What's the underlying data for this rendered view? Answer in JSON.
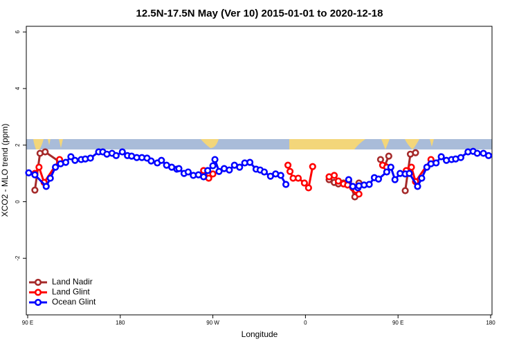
{
  "chart_data": {
    "type": "line",
    "title": "12.5N-17.5N May (Ver 10)   2015-01-01 to 2020-12-18",
    "x_label": "Longitude",
    "y_label": "XCO2 - MLO trend (ppm)",
    "xlim": [
      90,
      540
    ],
    "ylim": [
      -4,
      6.2
    ],
    "xticks": [
      {
        "value": 90,
        "label": "90 E"
      },
      180,
      {
        "value": 270,
        "label": "90 W"
      },
      {
        "value": 360,
        "label": "0"
      },
      {
        "value": 450,
        "label": "90 E"
      },
      {
        "value": 540,
        "label": "180"
      }
    ],
    "yticks": [
      -2,
      0,
      2,
      4,
      6
    ],
    "legend": "bottomleft",
    "series": [
      {
        "name": "Land Nadir",
        "color": "#a52a2a",
        "x": [
          97,
          102,
          107,
          121,
          null,
          383,
          388,
          392,
          397,
          402,
          408,
          412,
          null,
          433,
          437,
          441,
          null,
          457,
          462,
          467
        ],
        "values": [
          0.41,
          1.71,
          1.76,
          1.41,
          null,
          0.78,
          0.68,
          0.63,
          0.66,
          0.73,
          0.17,
          0.66,
          null,
          1.49,
          1.27,
          1.61,
          null,
          0.39,
          1.68,
          1.73
        ]
      },
      {
        "name": "Land Glint",
        "color": "#ff0000",
        "x": [
          97,
          101,
          106,
          121,
          null,
          261,
          266,
          270,
          null,
          343,
          345,
          348,
          353,
          359,
          363,
          367,
          null,
          383,
          388,
          392,
          397,
          401,
          406,
          409,
          412,
          null,
          435,
          439,
          null,
          458,
          463,
          467,
          482
        ],
        "values": [
          1.0,
          1.22,
          0.68,
          1.49,
          null,
          1.1,
          0.83,
          0.98,
          null,
          1.29,
          1.07,
          0.83,
          0.83,
          0.66,
          0.49,
          1.24,
          null,
          0.88,
          0.93,
          0.73,
          0.63,
          0.59,
          0.49,
          0.41,
          0.27,
          null,
          1.29,
          1.22,
          null,
          1.1,
          1.22,
          0.71,
          1.49
        ]
      },
      {
        "name": "Ocean Glint",
        "color": "#0000ff",
        "x": [
          91,
          97,
          108,
          112,
          117,
          122,
          127,
          132,
          136,
          142,
          146,
          151,
          159,
          163,
          167,
          172,
          176,
          182,
          187,
          191,
          196,
          201,
          206,
          210,
          216,
          220,
          225,
          230,
          235,
          237,
          242,
          246,
          251,
          256,
          261,
          265,
          270,
          272,
          276,
          281,
          286,
          291,
          296,
          301,
          306,
          312,
          316,
          320,
          326,
          331,
          336,
          341,
          null,
          402,
          406,
          411,
          412,
          417,
          422,
          427,
          431,
          439,
          443,
          447,
          452,
          457,
          461,
          469,
          473,
          478,
          482,
          487,
          492,
          497,
          502,
          506,
          511,
          518,
          523,
          527,
          533,
          538
        ],
        "values": [
          1.02,
          0.95,
          0.54,
          0.83,
          1.22,
          1.34,
          1.39,
          1.59,
          1.46,
          1.49,
          1.51,
          1.54,
          1.76,
          1.76,
          1.68,
          1.71,
          1.63,
          1.76,
          1.63,
          1.61,
          1.56,
          1.56,
          1.54,
          1.44,
          1.37,
          1.46,
          1.29,
          1.22,
          1.15,
          1.17,
          1.0,
          1.05,
          0.93,
          0.95,
          0.88,
          1.1,
          1.27,
          1.49,
          1.07,
          1.17,
          1.12,
          1.29,
          1.22,
          1.37,
          1.39,
          1.15,
          1.12,
          1.05,
          0.9,
          0.98,
          0.93,
          0.61,
          null,
          0.78,
          0.54,
          0.49,
          0.56,
          0.59,
          0.61,
          0.85,
          0.8,
          1.05,
          1.22,
          0.78,
          1.0,
          0.98,
          1.0,
          0.54,
          0.83,
          1.22,
          1.34,
          1.37,
          1.59,
          1.46,
          1.49,
          1.51,
          1.56,
          1.76,
          1.78,
          1.71,
          1.71,
          1.63
        ]
      }
    ]
  }
}
